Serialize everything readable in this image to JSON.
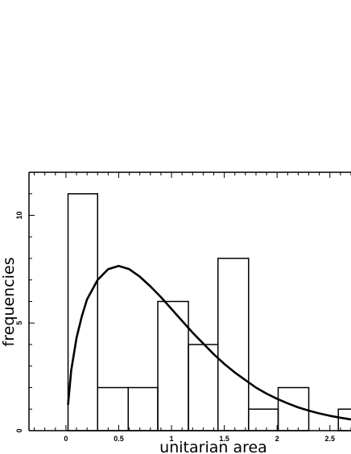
{
  "chart_data": {
    "type": "bar",
    "title": "",
    "xlabel": "unitarian area",
    "ylabel": "frequencies",
    "xlim": [
      -0.35,
      2.7
    ],
    "ylim": [
      0,
      12
    ],
    "x_ticks": [
      {
        "value": 0,
        "label": "0"
      },
      {
        "value": 0.5,
        "label": "0.5"
      },
      {
        "value": 1,
        "label": "1"
      },
      {
        "value": 1.5,
        "label": "1.5"
      },
      {
        "value": 2,
        "label": "2"
      },
      {
        "value": 2.5,
        "label": "2.5"
      }
    ],
    "y_ticks": [
      {
        "value": 0,
        "label": "0"
      },
      {
        "value": 5,
        "label": "5"
      },
      {
        "value": 10,
        "label": "10"
      }
    ],
    "bins": [
      {
        "x0": 0.02,
        "x1": 0.3,
        "count": 11
      },
      {
        "x0": 0.3,
        "x1": 0.59,
        "count": 2
      },
      {
        "x0": 0.59,
        "x1": 0.87,
        "count": 2
      },
      {
        "x0": 0.87,
        "x1": 1.16,
        "count": 6
      },
      {
        "x0": 1.16,
        "x1": 1.44,
        "count": 4
      },
      {
        "x0": 1.44,
        "x1": 1.73,
        "count": 8
      },
      {
        "x0": 1.73,
        "x1": 2.01,
        "count": 1
      },
      {
        "x0": 2.01,
        "x1": 2.3,
        "count": 2
      },
      {
        "x0": 2.3,
        "x1": 2.58,
        "count": 0
      },
      {
        "x0": 2.58,
        "x1": 2.87,
        "count": 1
      }
    ],
    "fit_curve": {
      "x": [
        0.02,
        0.05,
        0.1,
        0.15,
        0.2,
        0.3,
        0.4,
        0.5,
        0.6,
        0.7,
        0.8,
        0.9,
        1.0,
        1.1,
        1.2,
        1.3,
        1.4,
        1.5,
        1.6,
        1.7,
        1.8,
        1.9,
        2.0,
        2.1,
        2.2,
        2.3,
        2.4,
        2.5,
        2.6,
        2.7
      ],
      "y": [
        1.2,
        2.8,
        4.3,
        5.3,
        6.1,
        7.0,
        7.5,
        7.65,
        7.5,
        7.15,
        6.7,
        6.2,
        5.65,
        5.1,
        4.55,
        4.05,
        3.55,
        3.1,
        2.7,
        2.35,
        2.0,
        1.72,
        1.48,
        1.27,
        1.08,
        0.93,
        0.8,
        0.69,
        0.6,
        0.52
      ]
    }
  }
}
